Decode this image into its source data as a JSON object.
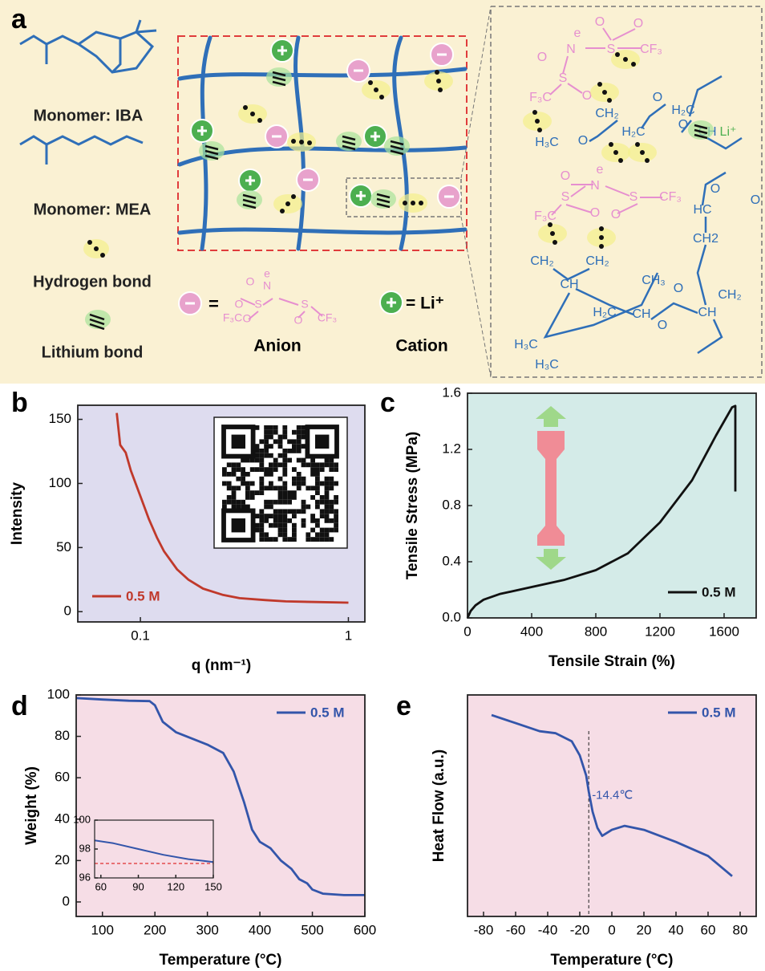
{
  "panel_a": {
    "label": "a",
    "legend_items": [
      "Monomer: IBA",
      "Monomer: MEA",
      "Hydrogen bond",
      "Lithium bond"
    ],
    "anion": {
      "equals": "=",
      "atoms": [
        "O",
        "e",
        "N",
        "O",
        "S",
        "S",
        "F₃C",
        "O",
        "O",
        "CF₃"
      ],
      "name": "Anion"
    },
    "cation": {
      "formula": "= Li⁺",
      "name": "Cation"
    },
    "structure_labels": [
      "e",
      "N",
      "S",
      "O",
      "O",
      "CF₃",
      "O",
      "S",
      "O",
      "F₃C",
      "H₂C",
      "CH",
      "O",
      "CH₂",
      "H₃C",
      "O",
      "H₂C",
      "O",
      "Li⁺",
      "O",
      "e",
      "N",
      "S",
      "S",
      "CF₃",
      "O",
      "O",
      "F₃C",
      "O",
      "HC",
      "O",
      "CH2",
      "CH₂",
      "CH₂",
      "CH",
      "CH₃",
      "H₂C",
      "CH",
      "O",
      "O",
      "CH₂",
      "CH",
      "H₃C",
      "H₃C"
    ]
  },
  "chart_data": [
    {
      "type": "line",
      "panel_label": "b",
      "xlabel": "q (nm⁻¹)",
      "ylabel": "Intensity",
      "xlog": true,
      "xlim": [
        0.05,
        1.2
      ],
      "ylim": [
        -8,
        161
      ],
      "xticks": [
        0.1,
        1
      ],
      "yticks": [
        0,
        50,
        100,
        150
      ],
      "background": "#dedcef",
      "legend": "lower left",
      "x": [
        0.077,
        0.08,
        0.085,
        0.09,
        0.1,
        0.11,
        0.12,
        0.13,
        0.15,
        0.17,
        0.2,
        0.25,
        0.3,
        0.4,
        0.5,
        0.7,
        1
      ],
      "series": [
        {
          "name": "0.5 M",
          "color": "#c0392b",
          "values": [
            155,
            130,
            124,
            110,
            90,
            72,
            58,
            47,
            33,
            25,
            18,
            13,
            10.5,
            9,
            8,
            7.5,
            7
          ]
        }
      ]
    },
    {
      "type": "line",
      "panel_label": "c",
      "xlabel": "Tensile Strain (%)",
      "ylabel": "Tensile Stress (MPa)",
      "xlim": [
        0,
        1800
      ],
      "ylim": [
        0,
        1.6
      ],
      "xticks": [
        0,
        400,
        800,
        1200,
        1600
      ],
      "yticks": [
        {
          "value": 0,
          "label": "0.0"
        },
        0.4,
        0.8,
        1.2,
        1.6
      ],
      "background": "#d4ebe8",
      "legend": "lower right",
      "x": [
        0,
        20,
        50,
        100,
        200,
        400,
        600,
        800,
        1000,
        1200,
        1400,
        1550,
        1650,
        1670,
        1670
      ],
      "series": [
        {
          "name": "0.5 M",
          "color": "#111111",
          "values": [
            0,
            0.05,
            0.09,
            0.13,
            0.17,
            0.22,
            0.27,
            0.34,
            0.46,
            0.68,
            0.98,
            1.3,
            1.5,
            1.51,
            0.9
          ]
        }
      ]
    },
    {
      "type": "line",
      "panel_label": "d",
      "xlabel": "Temperature (°C)",
      "ylabel": "Weight (%)",
      "xlim": [
        50,
        600
      ],
      "ylim": [
        -7,
        100
      ],
      "xticks": [
        100,
        200,
        300,
        400,
        500,
        600
      ],
      "yticks": [
        0,
        20,
        40,
        60,
        80,
        100
      ],
      "background": "#f6dde6",
      "legend": "upper right",
      "x": [
        50,
        100,
        150,
        190,
        200,
        215,
        240,
        300,
        330,
        350,
        370,
        385,
        400,
        420,
        440,
        460,
        475,
        490,
        500,
        520,
        560,
        600
      ],
      "series": [
        {
          "name": "0.5 M",
          "color": "#3355aa",
          "values": [
            98.5,
            97.8,
            97.2,
            97,
            95,
            87,
            82,
            76,
            72,
            63,
            48,
            35,
            29,
            26,
            20,
            16,
            11,
            9,
            6,
            4,
            3.3,
            3.3
          ]
        }
      ],
      "inset": {
        "type": "line",
        "xlim": [
          55,
          150
        ],
        "ylim": [
          96,
          100
        ],
        "xticks": [
          60,
          90,
          120,
          150
        ],
        "yticks": [
          96,
          98,
          100
        ],
        "hline": 97,
        "hline_color": "#e03030",
        "x": [
          55,
          70,
          90,
          110,
          130,
          150
        ],
        "series": [
          {
            "color": "#3355aa",
            "values": [
              98.6,
              98.4,
              98,
              97.6,
              97.3,
              97.1
            ]
          }
        ]
      }
    },
    {
      "type": "line",
      "panel_label": "e",
      "xlabel": "Temperature (°C)",
      "ylabel": "Heat Flow (a.u.)",
      "xlim": [
        -90,
        90
      ],
      "ylim": [
        -0.1,
        1.0
      ],
      "xticks": [
        -80,
        -60,
        -40,
        -20,
        0,
        20,
        40,
        60,
        80
      ],
      "background": "#f6dde6",
      "legend": "upper right",
      "vline": -14.4,
      "annotation": "-14.4℃",
      "x": [
        -75,
        -60,
        -45,
        -35,
        -25,
        -20,
        -16,
        -14.4,
        -12,
        -9,
        -6,
        0,
        8,
        20,
        40,
        60,
        75
      ],
      "series": [
        {
          "name": "0.5 M",
          "color": "#3355aa",
          "values": [
            0.9,
            0.86,
            0.82,
            0.81,
            0.77,
            0.7,
            0.6,
            0.52,
            0.42,
            0.34,
            0.3,
            0.33,
            0.35,
            0.33,
            0.27,
            0.2,
            0.1
          ]
        }
      ]
    }
  ]
}
